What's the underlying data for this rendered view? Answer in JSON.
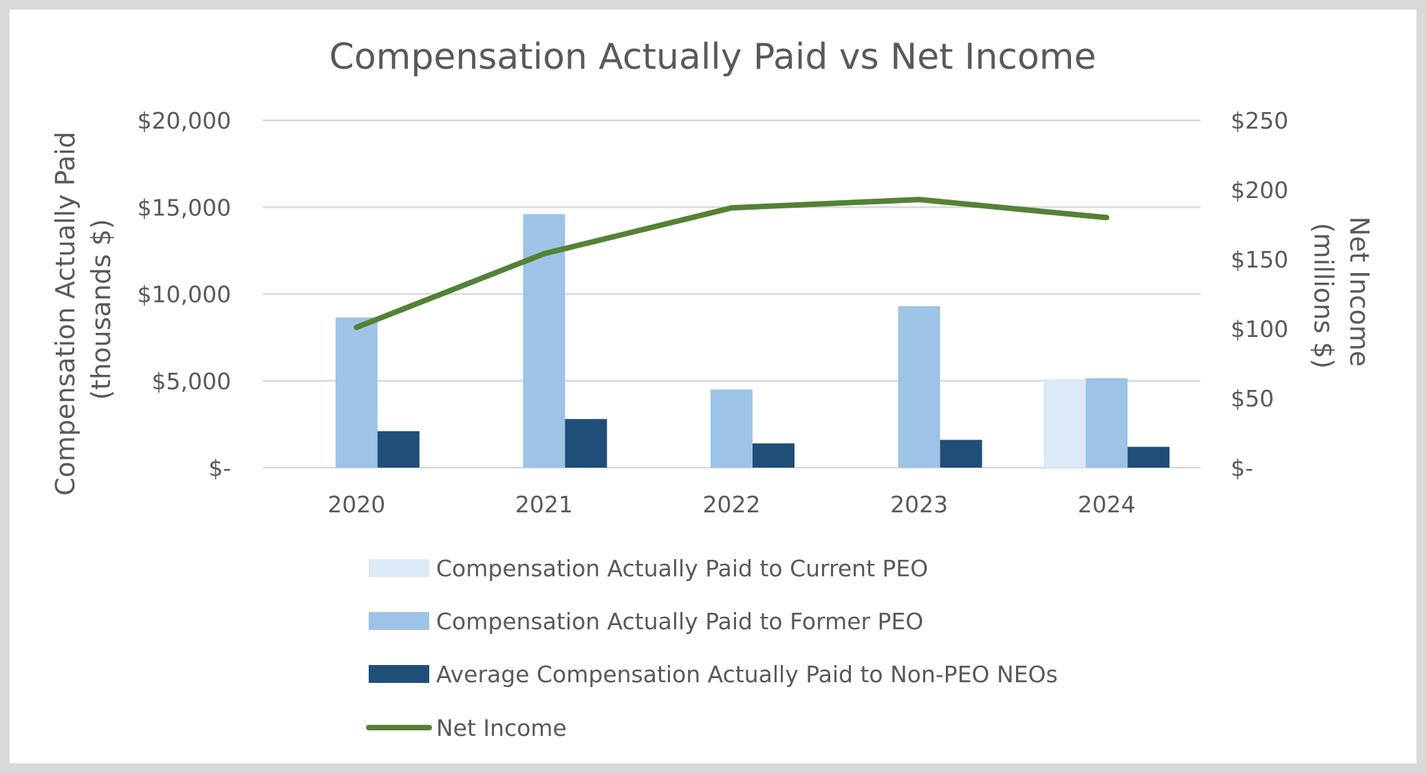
{
  "chart_data": {
    "type": "bar",
    "title": "Compensation Actually Paid vs Net Income",
    "categories": [
      "2020",
      "2021",
      "2022",
      "2023",
      "2024"
    ],
    "y_left": {
      "label_lines": [
        "Compensation Actually Paid",
        "(thousands $)"
      ],
      "range": [
        0,
        20000
      ],
      "ticks": [
        0,
        5000,
        10000,
        15000,
        20000
      ],
      "tick_labels": [
        "$-",
        "$5,000",
        "$10,000",
        "$15,000",
        "$20,000"
      ]
    },
    "y_right": {
      "label_lines": [
        "Net Income",
        "(millions $)"
      ],
      "range": [
        0,
        250
      ],
      "ticks": [
        0,
        50,
        100,
        150,
        200,
        250
      ],
      "tick_labels": [
        "$-",
        "$50",
        "$100",
        "$150",
        "$200",
        "$250"
      ]
    },
    "grid": true,
    "legend_position": "bottom",
    "series": [
      {
        "name": "Compensation Actually Paid to Current PEO",
        "type": "bar",
        "axis": "left",
        "color": "#dce9f6",
        "values": [
          null,
          null,
          null,
          null,
          5100
        ]
      },
      {
        "name": "Compensation Actually Paid to Former PEO",
        "type": "bar",
        "axis": "left",
        "color": "#9dc3e6",
        "values": [
          8650,
          14600,
          4500,
          9300,
          5150
        ]
      },
      {
        "name": "Average Compensation Actually Paid to Non-PEO NEOs",
        "type": "bar",
        "axis": "left",
        "color": "#1f4e79",
        "values": [
          2100,
          2800,
          1400,
          1600,
          1200
        ]
      },
      {
        "name": "Net Income",
        "type": "line",
        "axis": "right",
        "color": "#548235",
        "values": [
          101,
          154,
          187,
          193,
          180
        ]
      }
    ]
  }
}
